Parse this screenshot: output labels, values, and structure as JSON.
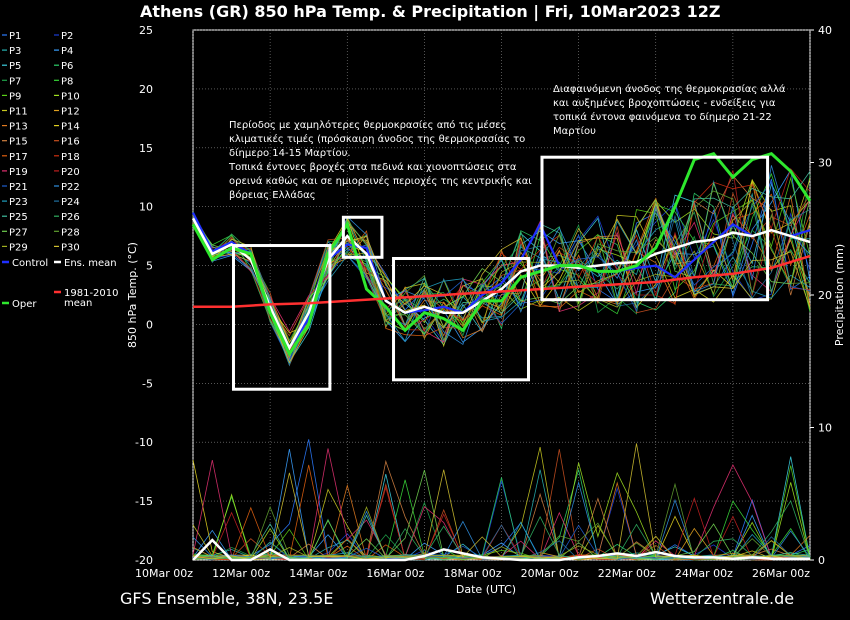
{
  "chart_data": {
    "type": "line",
    "title": "Athens  (GR)  850 hPa Temp. & Precipitation | Fri, 10Mar2023 12Z",
    "xlabel": "Date (UTC)",
    "ylabel": "850 hPa Temp. (°C)",
    "y2label": "Precipitation (mm)",
    "ylim": [
      -20,
      25
    ],
    "y2lim": [
      0,
      40
    ],
    "xlim": [
      0,
      16
    ],
    "yticks": [
      -20,
      -15,
      -10,
      -5,
      0,
      5,
      10,
      15,
      20,
      25
    ],
    "y2ticks": [
      0,
      10,
      20,
      30,
      40
    ],
    "xticks": [
      {
        "x": 0,
        "label": "10Mar 00z"
      },
      {
        "x": 2,
        "label": "12Mar 00z"
      },
      {
        "x": 4,
        "label": "14Mar 00z"
      },
      {
        "x": 6,
        "label": "16Mar 00z"
      },
      {
        "x": 8,
        "label": "18Mar 00z"
      },
      {
        "x": 10,
        "label": "20Mar 00z"
      },
      {
        "x": 12,
        "label": "22Mar 00z"
      },
      {
        "x": 14,
        "label": "24Mar 00z"
      },
      {
        "x": 16,
        "label": "26Mar 00z"
      }
    ],
    "grid": true,
    "legend_position": "left",
    "legend": [
      "P1",
      "P2",
      "P3",
      "P4",
      "P5",
      "P6",
      "P7",
      "P8",
      "P9",
      "P10",
      "P11",
      "P12",
      "P13",
      "P14",
      "P15",
      "P16",
      "P17",
      "P18",
      "P19",
      "P20",
      "P21",
      "P22",
      "P23",
      "P24",
      "P25",
      "P26",
      "P27",
      "P28",
      "P29",
      "P30",
      "Control",
      "Ens. mean",
      "Oper",
      "1981-2010 mean"
    ],
    "member_colors": [
      "#2b7bff",
      "#1a3dd6",
      "#27b3b3",
      "#3aa0ff",
      "#3ccfe0",
      "#2ed06a",
      "#1fa34a",
      "#38d838",
      "#5ad018",
      "#9fe020",
      "#c8c820",
      "#e0a020",
      "#e07a20",
      "#e0d020",
      "#d08040",
      "#c85020",
      "#e06010",
      "#d03010",
      "#e03070",
      "#c02020",
      "#1f5fd0",
      "#3090e0",
      "#20a0c0",
      "#2070a0",
      "#40c0a0",
      "#30b060",
      "#70d050",
      "#60a030",
      "#a0b020",
      "#d0c030"
    ],
    "series": [
      {
        "name": "Control",
        "color": "#1f2fff",
        "x": [
          0,
          0.5,
          1,
          1.5,
          2,
          2.5,
          3,
          3.5,
          4,
          4.5,
          5,
          5.5,
          6,
          6.5,
          7,
          7.5,
          8,
          8.5,
          9,
          9.5,
          10,
          10.5,
          11,
          11.5,
          12,
          12.5,
          13,
          13.5,
          14,
          14.5,
          15,
          15.5,
          16
        ],
        "values": [
          9.5,
          6.2,
          7.0,
          6.0,
          1.0,
          -2.0,
          0.5,
          5.5,
          6.8,
          6.5,
          2.0,
          1.0,
          1.2,
          1.5,
          1.0,
          2.5,
          3.5,
          5.5,
          8.5,
          5.0,
          5.0,
          4.5,
          4.5,
          4.8,
          5.0,
          4.0,
          5.5,
          7.0,
          8.5,
          7.5,
          8.0,
          7.5,
          8.0
        ]
      },
      {
        "name": "Ens. mean",
        "color": "#ffffff",
        "x": [
          0,
          0.5,
          1,
          1.5,
          2,
          2.5,
          3,
          3.5,
          4,
          4.5,
          5,
          5.5,
          6,
          6.5,
          7,
          7.5,
          8,
          8.5,
          9,
          9.5,
          10,
          10.5,
          11,
          11.5,
          12,
          12.5,
          13,
          13.5,
          14,
          14.5,
          15,
          15.5,
          16
        ],
        "values": [
          9.0,
          6.0,
          6.8,
          5.5,
          1.5,
          -2.0,
          1.0,
          5.5,
          7.5,
          6.0,
          2.0,
          1.0,
          1.5,
          1.0,
          1.0,
          2.0,
          3.0,
          4.5,
          5.0,
          5.0,
          4.8,
          5.0,
          5.2,
          5.3,
          6.0,
          6.5,
          7.0,
          7.2,
          7.8,
          7.5,
          8.0,
          7.5,
          7.0
        ]
      },
      {
        "name": "Oper",
        "color": "#2ee82e",
        "x": [
          0,
          0.5,
          1,
          1.5,
          2,
          2.5,
          3,
          3.5,
          4,
          4.5,
          5,
          5.5,
          6,
          6.5,
          7,
          7.5,
          8,
          8.5,
          9,
          9.5,
          10,
          10.5,
          11,
          11.5,
          12,
          12.5,
          13,
          13.5,
          14,
          14.5,
          15,
          15.5,
          16
        ],
        "values": [
          8.5,
          5.5,
          6.5,
          6.0,
          1.0,
          -2.5,
          0.0,
          6.0,
          8.5,
          3.0,
          1.5,
          -0.5,
          1.0,
          0.5,
          -0.5,
          2.0,
          2.0,
          4.0,
          4.5,
          5.0,
          5.0,
          4.5,
          4.5,
          5.0,
          6.5,
          10.0,
          14.0,
          14.5,
          12.5,
          14.0,
          14.5,
          13.0,
          10.5
        ]
      },
      {
        "name": "1981-2010 mean",
        "color": "#ff3030",
        "x": [
          0,
          1,
          2,
          3,
          4,
          5,
          6,
          7,
          8,
          9,
          10,
          11,
          12,
          13,
          14,
          15,
          16
        ],
        "values": [
          1.5,
          1.5,
          1.7,
          1.8,
          2.0,
          2.2,
          2.4,
          2.6,
          2.8,
          3.0,
          3.2,
          3.4,
          3.6,
          4.0,
          4.3,
          4.8,
          5.8
        ]
      }
    ],
    "precipitation": {
      "name": "Ens. mean precipitation",
      "color": "#ffffff",
      "x": [
        0,
        0.5,
        1,
        1.5,
        2,
        2.5,
        3,
        3.5,
        4,
        4.5,
        5,
        5.5,
        6,
        6.5,
        7,
        7.5,
        8,
        8.5,
        9,
        9.5,
        10,
        10.5,
        11,
        11.5,
        12,
        12.5,
        13,
        13.5,
        14,
        14.5,
        15,
        15.5,
        16
      ],
      "values": [
        0,
        1.5,
        0,
        0,
        0.8,
        0,
        0,
        0,
        0,
        0,
        0,
        0,
        0.3,
        0.8,
        0.5,
        0.2,
        0.1,
        0,
        0,
        0,
        0.2,
        0.3,
        0.5,
        0.3,
        0.6,
        0.3,
        0.2,
        0.2,
        0.1,
        0.2,
        0.1,
        0.1,
        0.1
      ]
    },
    "annotations": [
      {
        "name": "annotation-left",
        "lines": [
          "Περίοδος με χαμηλότερες θερμοκρασίες από τις μέσες",
          "κλιματικές τιμές (πρόσκαιρη άνοδος της θερμοκρασίας το",
          "δίημερο 14-15 Μαρτίου.",
          "Τοπικά έντονες βροχές στα πεδινά και χιονοπτώσεις στα",
          "ορεινά καθώς και σε ημιορεινές περιοχές της κεντρικής και",
          "βόρειας Ελλάδας"
        ]
      },
      {
        "name": "annotation-right",
        "lines": [
          "Διαφαινόμενη άνοδος της θερμοκρασίας αλλά",
          "και αυξημένες βροχοπτώσεις - ενδείξεις για",
          "τοπικά έντονα φαινόμενα το δίημερο 21-22",
          "Μαρτίου"
        ]
      }
    ],
    "highlight_boxes": [
      {
        "x": [
          1.05,
          3.55
        ],
        "y": [
          -5.5,
          6.7
        ]
      },
      {
        "x": [
          3.9,
          4.9
        ],
        "y": [
          5.7,
          9.1
        ]
      },
      {
        "x": [
          5.2,
          8.7
        ],
        "y": [
          -4.7,
          5.6
        ]
      },
      {
        "x": [
          9.05,
          14.9
        ],
        "y": [
          2.1,
          14.2
        ]
      }
    ]
  },
  "footer": {
    "left": "GFS Ensemble, 38N, 23.5E",
    "right": "Wetterzentrale.de"
  }
}
